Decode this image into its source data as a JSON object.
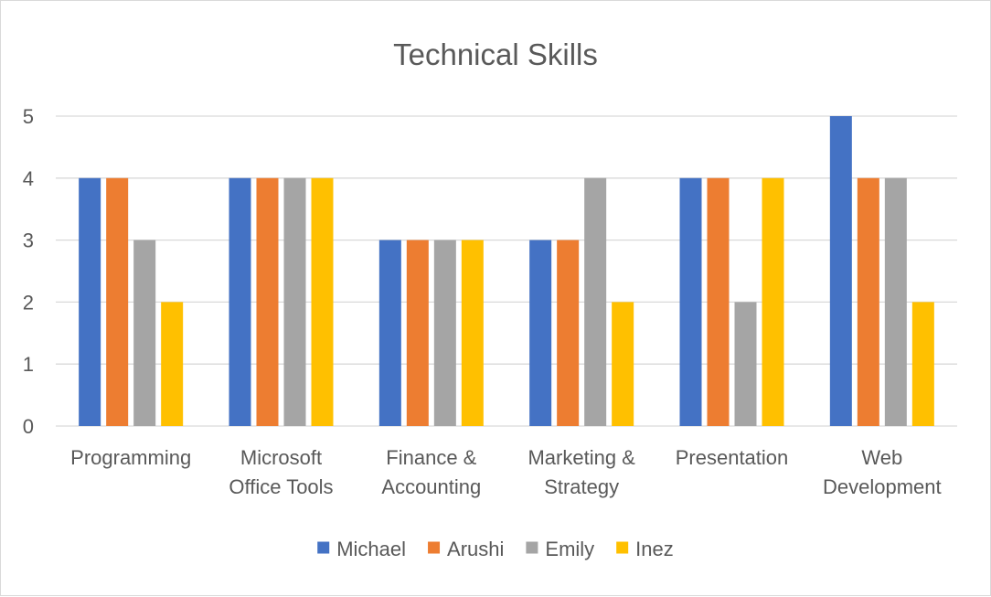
{
  "chart_data": {
    "type": "bar",
    "title": "Technical Skills",
    "xlabel": "",
    "ylabel": "",
    "ylim": [
      0,
      5
    ],
    "yticks": [
      0,
      1,
      2,
      3,
      4,
      5
    ],
    "grid": true,
    "legend_position": "bottom",
    "categories": [
      [
        "Programming"
      ],
      [
        "Microsoft",
        "Office Tools"
      ],
      [
        "Finance &",
        "Accounting"
      ],
      [
        "Marketing &",
        "Strategy"
      ],
      [
        "Presentation"
      ],
      [
        "Web",
        "Development"
      ]
    ],
    "series": [
      {
        "name": "Michael",
        "color": "#4472C4",
        "values": [
          4,
          4,
          3,
          3,
          4,
          5
        ]
      },
      {
        "name": "Arushi",
        "color": "#ED7D31",
        "values": [
          4,
          4,
          3,
          3,
          4,
          4
        ]
      },
      {
        "name": "Emily",
        "color": "#A5A5A5",
        "values": [
          3,
          4,
          3,
          4,
          2,
          4
        ]
      },
      {
        "name": "Inez",
        "color": "#FFC000",
        "values": [
          2,
          4,
          3,
          2,
          4,
          2
        ]
      }
    ]
  }
}
